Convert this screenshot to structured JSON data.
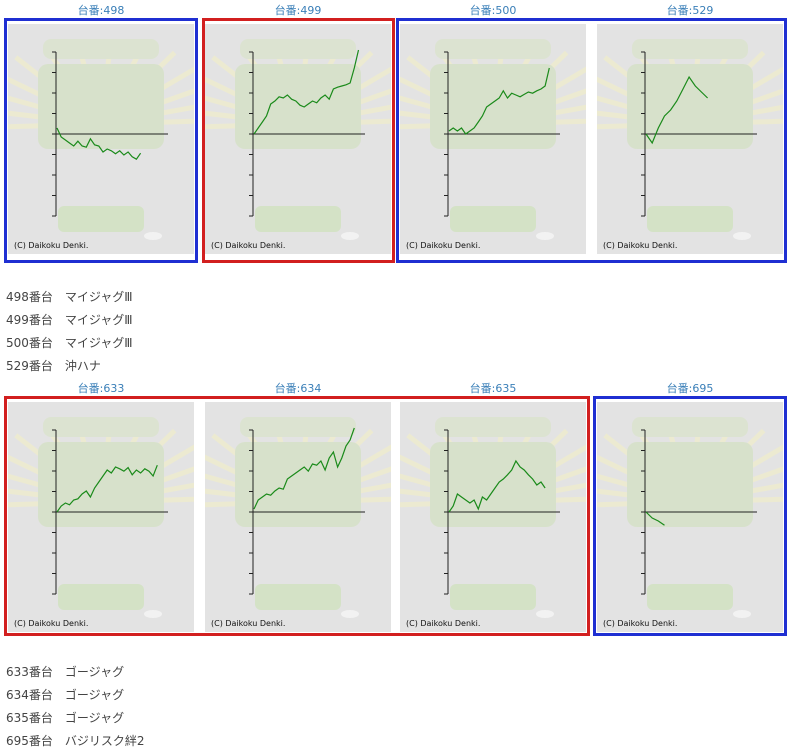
{
  "panels": [
    {
      "caption": "台番:498",
      "copyright": "(C) Daikoku Denki.",
      "chart_data": {
        "type": "line",
        "x": [
          0,
          1,
          2,
          3,
          4,
          5,
          6,
          7,
          8,
          9,
          10,
          11,
          12,
          13,
          14,
          15,
          16,
          17,
          18,
          19,
          20
        ],
        "values": [
          0.1,
          -0.05,
          -0.1,
          -0.15,
          -0.2,
          -0.12,
          -0.2,
          -0.22,
          -0.08,
          -0.18,
          -0.2,
          -0.3,
          -0.25,
          -0.28,
          -0.33,
          -0.28,
          -0.35,
          -0.3,
          -0.38,
          -0.42,
          -0.32
        ]
      }
    },
    {
      "caption": "台番:499",
      "copyright": "(C) Daikoku Denki.",
      "chart_data": {
        "type": "line",
        "x": [
          0,
          1,
          2,
          3,
          4,
          5,
          6,
          7,
          8,
          9,
          10,
          11,
          12,
          13,
          14,
          15,
          16,
          17,
          18,
          19,
          20,
          21,
          22,
          23,
          24,
          25
        ],
        "values": [
          0.0,
          0.1,
          0.2,
          0.3,
          0.5,
          0.55,
          0.62,
          0.6,
          0.65,
          0.58,
          0.55,
          0.48,
          0.45,
          0.5,
          0.55,
          0.52,
          0.6,
          0.65,
          0.58,
          0.75,
          0.78,
          0.8,
          0.82,
          0.85,
          1.1,
          1.4
        ]
      }
    },
    {
      "caption": "台番:500",
      "copyright": "(C) Daikoku Denki.",
      "chart_data": {
        "type": "line",
        "x": [
          0,
          1,
          2,
          3,
          4,
          5,
          6,
          7,
          8,
          9,
          10,
          11,
          12,
          13,
          14,
          15,
          16,
          17,
          18,
          19,
          20,
          21,
          22,
          23,
          24
        ],
        "values": [
          0.05,
          0.1,
          0.05,
          0.1,
          0.0,
          0.05,
          0.1,
          0.2,
          0.3,
          0.45,
          0.5,
          0.55,
          0.6,
          0.72,
          0.6,
          0.68,
          0.65,
          0.62,
          0.66,
          0.7,
          0.68,
          0.72,
          0.75,
          0.8,
          1.1
        ]
      }
    },
    {
      "caption": "台番:529",
      "copyright": "(C) Daikoku Denki.",
      "chart_data": {
        "type": "line",
        "x": [
          0,
          1,
          2,
          3,
          4,
          5,
          6,
          7,
          8,
          9,
          10
        ],
        "values": [
          0.0,
          -0.15,
          0.1,
          0.3,
          0.4,
          0.55,
          0.75,
          0.95,
          0.8,
          0.7,
          0.6
        ]
      }
    }
  ],
  "list1": [
    {
      "label": "498番台　マイジャグⅢ"
    },
    {
      "label": "499番台　マイジャグⅢ"
    },
    {
      "label": "500番台　マイジャグⅢ"
    },
    {
      "label": "529番台　沖ハナ"
    }
  ],
  "panels2": [
    {
      "caption": "台番:633",
      "copyright": "(C) Daikoku Denki.",
      "chart_data": {
        "type": "line",
        "x": [
          0,
          1,
          2,
          3,
          4,
          5,
          6,
          7,
          8,
          9,
          10,
          11,
          12,
          13,
          14,
          15,
          16,
          17,
          18,
          19,
          20,
          21,
          22,
          23,
          24
        ],
        "values": [
          0.0,
          0.1,
          0.15,
          0.12,
          0.2,
          0.22,
          0.3,
          0.35,
          0.25,
          0.4,
          0.5,
          0.6,
          0.7,
          0.65,
          0.75,
          0.72,
          0.68,
          0.74,
          0.62,
          0.7,
          0.65,
          0.72,
          0.68,
          0.6,
          0.78
        ]
      }
    },
    {
      "caption": "台番:634",
      "copyright": "(C) Daikoku Denki.",
      "chart_data": {
        "type": "line",
        "x": [
          0,
          1,
          2,
          3,
          4,
          5,
          6,
          7,
          8,
          9,
          10,
          11,
          12,
          13,
          14,
          15,
          16,
          17,
          18,
          19,
          20,
          21,
          22,
          23,
          24
        ],
        "values": [
          0.05,
          0.2,
          0.25,
          0.3,
          0.28,
          0.35,
          0.4,
          0.38,
          0.55,
          0.6,
          0.65,
          0.7,
          0.75,
          0.68,
          0.8,
          0.78,
          0.85,
          0.7,
          0.9,
          1.0,
          0.75,
          0.9,
          1.1,
          1.2,
          1.4
        ]
      }
    },
    {
      "caption": "台番:635",
      "copyright": "(C) Daikoku Denki.",
      "chart_data": {
        "type": "line",
        "x": [
          0,
          1,
          2,
          3,
          4,
          5,
          6,
          7,
          8,
          9,
          10,
          11,
          12,
          13,
          14,
          15,
          16,
          17,
          18,
          19,
          20,
          21,
          22,
          23
        ],
        "values": [
          0.0,
          0.1,
          0.3,
          0.25,
          0.2,
          0.15,
          0.2,
          0.05,
          0.25,
          0.2,
          0.3,
          0.4,
          0.5,
          0.55,
          0.62,
          0.7,
          0.85,
          0.75,
          0.7,
          0.62,
          0.55,
          0.45,
          0.5,
          0.4
        ]
      }
    },
    {
      "caption": "台番:695",
      "copyright": "(C) Daikoku Denki.",
      "chart_data": {
        "type": "line",
        "x": [
          0,
          1,
          2,
          3
        ],
        "values": [
          0.0,
          -0.1,
          -0.15,
          -0.22
        ]
      }
    }
  ],
  "list2": [
    {
      "label": "633番台　ゴージャグ"
    },
    {
      "label": "634番台　ゴージャグ"
    },
    {
      "label": "635番台　ゴージャグ"
    },
    {
      "label": "695番台　バジリスク絆2"
    }
  ],
  "colors": {
    "red": "#d21f1f",
    "blue": "#1f2fd2",
    "line": "#1a8a1a",
    "caption": "#3a7fb8"
  }
}
